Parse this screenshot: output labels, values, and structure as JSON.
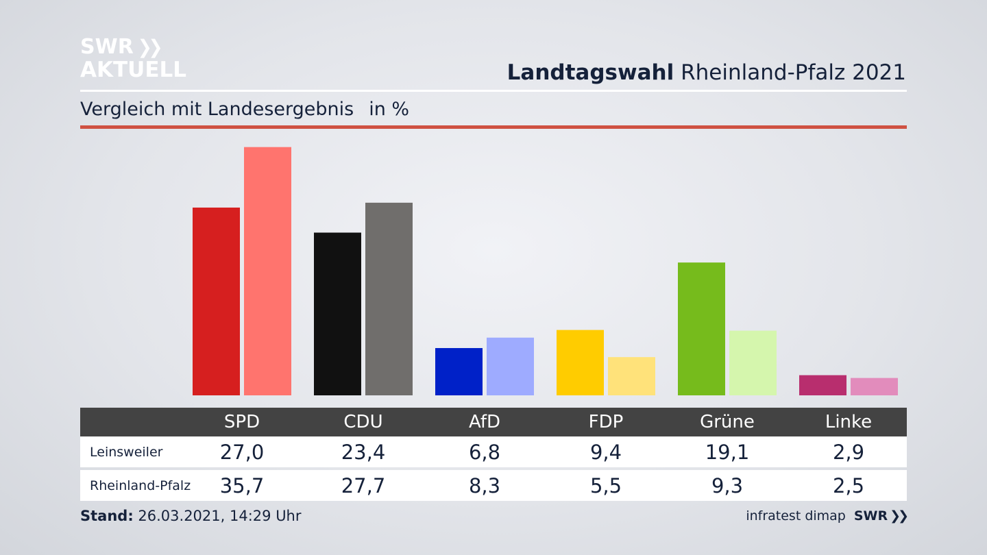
{
  "brand": {
    "logo_line1": "SWR",
    "logo_line2": "AKTUELL"
  },
  "header": {
    "title_bold": "Landtagswahl",
    "title_rest": "Rheinland-Pfalz 2021"
  },
  "subheader": {
    "text": "Vergleich mit Landesergebnis",
    "unit": "in %"
  },
  "colors": {
    "accent_rule": "#cf5142",
    "table_header": "#434343"
  },
  "chart_data": {
    "type": "bar",
    "title": "",
    "xlabel": "",
    "ylabel": "",
    "ylim": [
      0,
      40
    ],
    "grid": false,
    "categories": [
      "SPD",
      "CDU",
      "AfD",
      "FDP",
      "Grüne",
      "Linke"
    ],
    "series": [
      {
        "name": "Leinsweiler",
        "values": [
          27.0,
          23.4,
          6.8,
          9.4,
          19.1,
          2.9
        ],
        "display": [
          "27,0",
          "23,4",
          "6,8",
          "9,4",
          "19,1",
          "2,9"
        ],
        "colors": [
          "#d61f1f",
          "#111111",
          "#0021c8",
          "#ffcc00",
          "#76bb1c",
          "#b82e6e"
        ]
      },
      {
        "name": "Rheinland-Pfalz",
        "values": [
          35.7,
          27.7,
          8.3,
          5.5,
          9.3,
          2.5
        ],
        "display": [
          "35,7",
          "27,7",
          "8,3",
          "5,5",
          "9,3",
          "2,5"
        ],
        "colors": [
          "#ff746e",
          "#706e6c",
          "#9eabff",
          "#ffe27a",
          "#d5f6ad",
          "#e28cbc"
        ]
      }
    ]
  },
  "footer": {
    "stand_label": "Stand:",
    "stand_value": "26.03.2021, 14:29 Uhr"
  },
  "credit": {
    "source": "infratest dimap",
    "brand": "SWR"
  }
}
